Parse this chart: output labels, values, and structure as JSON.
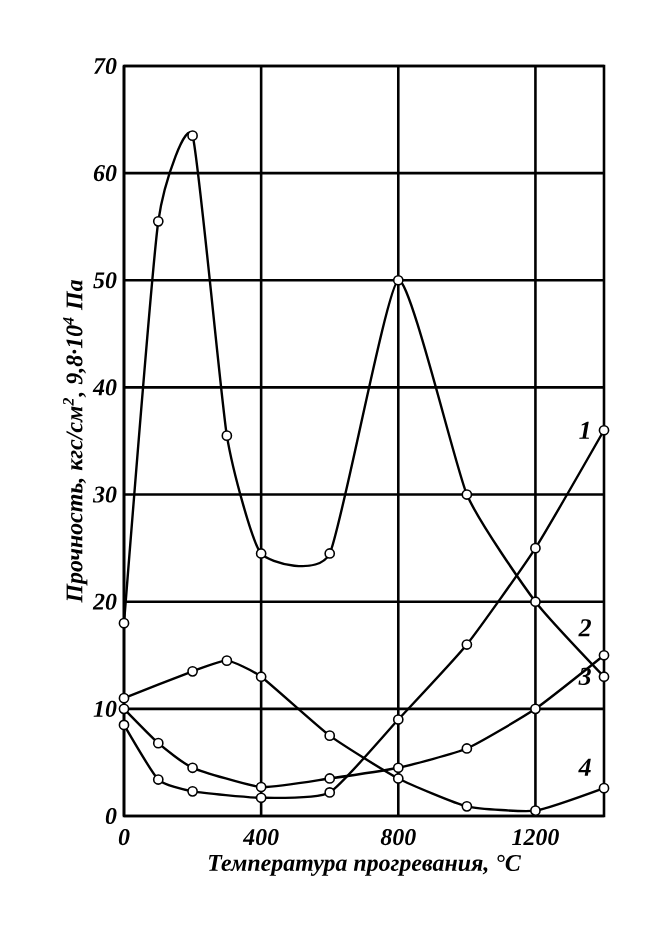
{
  "chart_data": {
    "type": "line",
    "xlabel": "Температура прогревания, °С",
    "ylabel": "Прочность, кгс/см$^{2}$, 9,8·10$^{4}$ Па",
    "xlim": [
      0,
      1400
    ],
    "ylim": [
      0,
      70
    ],
    "xticks": [
      0,
      400,
      800,
      1200
    ],
    "yticks": [
      0,
      10,
      20,
      30,
      40,
      50,
      60,
      70
    ],
    "grid": true,
    "marker": "circle",
    "line_style": "solid",
    "series": [
      {
        "name": "1",
        "color": "#000000",
        "x": [
          0,
          100,
          200,
          400,
          600,
          800,
          1000,
          1200,
          1400
        ],
        "values": [
          8.5,
          3.4,
          2.3,
          1.7,
          2.2,
          9,
          16,
          25,
          36
        ]
      },
      {
        "name": "2",
        "color": "#000000",
        "x": [
          0,
          100,
          200,
          300,
          400,
          600,
          800,
          1000,
          1200,
          1400
        ],
        "values": [
          18,
          55.5,
          63.5,
          35.5,
          24.5,
          24.5,
          50,
          30,
          20,
          13
        ]
      },
      {
        "name": "3",
        "color": "#000000",
        "x": [
          0,
          100,
          200,
          400,
          600,
          800,
          1000,
          1200,
          1400
        ],
        "values": [
          10,
          6.8,
          4.5,
          2.7,
          3.5,
          4.5,
          6.3,
          10,
          15
        ]
      },
      {
        "name": "4",
        "color": "#000000",
        "x": [
          0,
          200,
          300,
          400,
          600,
          800,
          1000,
          1200,
          1400
        ],
        "values": [
          11,
          13.5,
          14.5,
          13,
          7.5,
          3.5,
          0.9,
          0.5,
          2.6
        ]
      }
    ]
  }
}
